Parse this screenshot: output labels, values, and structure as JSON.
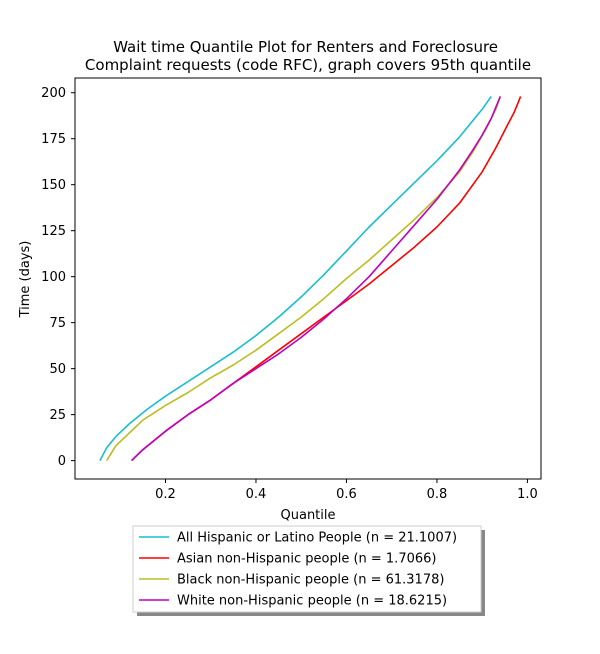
{
  "chart_data": {
    "type": "line",
    "title": "Wait time Quantile Plot for Renters and Foreclosure\nComplaint  requests (code RFC), graph covers 95th quantile",
    "xlabel": "Quantile",
    "ylabel": "Time (days)",
    "xlim": [
      0.0,
      1.03
    ],
    "ylim": [
      -10,
      208
    ],
    "xticks": [
      0.2,
      0.4,
      0.6,
      0.8,
      1.0
    ],
    "xtick_labels": [
      "0.2",
      "0.4",
      "0.6",
      "0.8",
      "1.0"
    ],
    "yticks": [
      0,
      25,
      50,
      75,
      100,
      125,
      150,
      175,
      200
    ],
    "ytick_labels": [
      "0",
      "25",
      "50",
      "75",
      "100",
      "125",
      "150",
      "175",
      "200"
    ],
    "grid": false,
    "legend_position": "below plot, centered",
    "series": [
      {
        "name": "All Hispanic or Latino People (n = 21.1007)",
        "color": "#17becf",
        "x": [
          0.055,
          0.07,
          0.09,
          0.12,
          0.16,
          0.2,
          0.25,
          0.3,
          0.35,
          0.4,
          0.45,
          0.5,
          0.55,
          0.6,
          0.65,
          0.7,
          0.75,
          0.8,
          0.85,
          0.88,
          0.9,
          0.92
        ],
        "y": [
          0,
          7,
          13,
          20,
          28,
          35,
          43,
          51,
          59,
          68,
          78,
          89,
          101,
          114,
          127,
          139,
          151,
          163,
          176,
          185,
          191,
          198
        ]
      },
      {
        "name": "Asian non-Hispanic people (n = 1.7066)",
        "color": "#ff0000",
        "x": [
          0.125,
          0.15,
          0.2,
          0.25,
          0.3,
          0.35,
          0.4,
          0.45,
          0.5,
          0.55,
          0.6,
          0.65,
          0.7,
          0.75,
          0.8,
          0.85,
          0.9,
          0.93,
          0.955,
          0.97,
          0.98,
          0.985
        ],
        "y": [
          0,
          6,
          16,
          25,
          33,
          42,
          51,
          60,
          69,
          78,
          87,
          96,
          106,
          116,
          127,
          140,
          157,
          170,
          182,
          189,
          195,
          198
        ]
      },
      {
        "name": "Black non-Hispanic people (n = 61.3178)",
        "color": "#bcbd22",
        "x": [
          0.07,
          0.09,
          0.12,
          0.15,
          0.2,
          0.25,
          0.3,
          0.35,
          0.4,
          0.45,
          0.5,
          0.55,
          0.6,
          0.65,
          0.7,
          0.75,
          0.8,
          0.85,
          0.88,
          0.91,
          0.93,
          0.94
        ],
        "y": [
          0,
          8,
          15,
          22,
          30,
          37,
          45,
          52,
          60,
          69,
          78,
          88,
          99,
          109,
          120,
          131,
          143,
          157,
          168,
          181,
          191,
          198
        ]
      },
      {
        "name": "White non-Hispanic people (n = 18.6215)",
        "color": "#bf00bf",
        "x": [
          0.125,
          0.15,
          0.2,
          0.25,
          0.3,
          0.35,
          0.4,
          0.45,
          0.5,
          0.55,
          0.6,
          0.65,
          0.7,
          0.75,
          0.8,
          0.85,
          0.88,
          0.9,
          0.92,
          0.94
        ],
        "y": [
          0,
          6,
          16,
          25,
          33,
          42,
          50,
          58,
          67,
          77,
          88,
          100,
          114,
          128,
          142,
          158,
          169,
          177,
          186,
          198
        ]
      }
    ]
  }
}
